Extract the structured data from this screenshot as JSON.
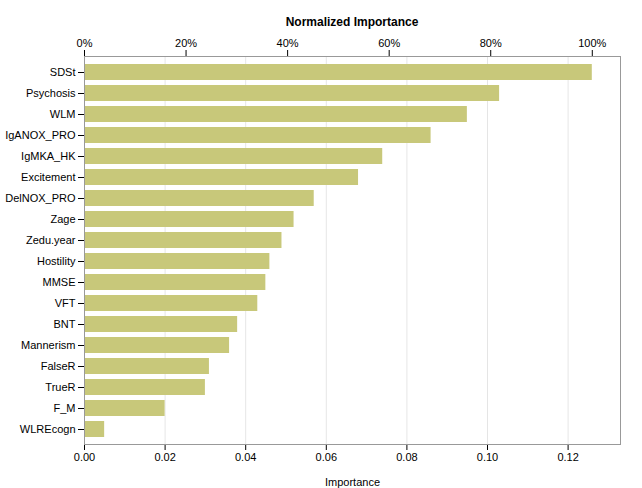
{
  "chart_data": {
    "type": "bar",
    "orientation": "horizontal",
    "categories": [
      "WLREcogn",
      "F_M",
      "TrueR",
      "FalseR",
      "Mannerism",
      "BNT",
      "VFT",
      "MMSE",
      "Hostility",
      "Zedu.year",
      "Zage",
      "DelNOX_PRO",
      "Excitement",
      "IgMKA_HK",
      "IgANOX_PRO",
      "WLM",
      "Psychosis",
      "SDSt"
    ],
    "values": [
      0.005,
      0.02,
      0.03,
      0.031,
      0.036,
      0.038,
      0.043,
      0.045,
      0.046,
      0.049,
      0.052,
      0.057,
      0.068,
      0.074,
      0.086,
      0.095,
      0.103,
      0.126
    ],
    "color": "#c8c87a",
    "xlabel": "Importance",
    "xlim": [
      0,
      0.133
    ],
    "xticks": [
      {
        "value": 0,
        "label": "0.00"
      },
      0.02,
      0.04,
      0.06,
      0.08,
      {
        "value": 0.1,
        "label": "0.10"
      },
      0.12
    ],
    "x2label": "Normalized Importance",
    "x2lim": [
      0,
      105.55555555555556
    ],
    "x2ticks": [
      {
        "value": 0,
        "label": "0%"
      },
      {
        "value": 20,
        "label": "20%"
      },
      {
        "value": 40,
        "label": "40%"
      },
      {
        "value": 60,
        "label": "60%"
      },
      {
        "value": 80,
        "label": "80%"
      },
      {
        "value": 100,
        "label": "100%"
      }
    ],
    "grid": true
  }
}
